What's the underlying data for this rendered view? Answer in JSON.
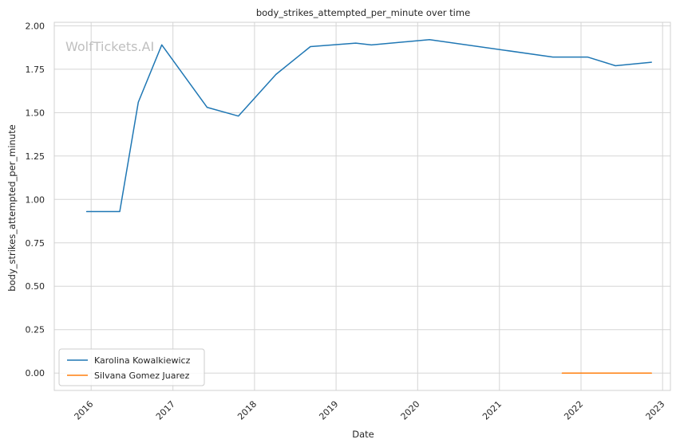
{
  "chart_data": {
    "type": "line",
    "title": "body_strikes_attempted_per_minute over time",
    "xlabel": "Date",
    "ylabel": "body_strikes_attempted_per_minute",
    "watermark": "WolfTickets.AI",
    "xlim": [
      "2015-07-20",
      "2023-02-05"
    ],
    "ylim": [
      -0.1,
      2.02
    ],
    "x_ticks": [
      "2016",
      "2017",
      "2018",
      "2019",
      "2020",
      "2021",
      "2022",
      "2023"
    ],
    "y_ticks": [
      "0.00",
      "0.25",
      "0.50",
      "0.75",
      "1.00",
      "1.25",
      "1.50",
      "1.75",
      "2.00"
    ],
    "grid": true,
    "legend_position": "lower-left",
    "series": [
      {
        "name": "Karolina Kowalkiewicz",
        "color": "#1f77b4",
        "points": [
          {
            "x": "2015-12-12",
            "y": 0.93
          },
          {
            "x": "2016-05-08",
            "y": 0.93
          },
          {
            "x": "2016-07-30",
            "y": 1.56
          },
          {
            "x": "2016-11-12",
            "y": 1.89
          },
          {
            "x": "2017-06-03",
            "y": 1.53
          },
          {
            "x": "2017-10-21",
            "y": 1.48
          },
          {
            "x": "2018-04-07",
            "y": 1.72
          },
          {
            "x": "2018-09-08",
            "y": 1.88
          },
          {
            "x": "2019-03-30",
            "y": 1.9
          },
          {
            "x": "2019-06-08",
            "y": 1.89
          },
          {
            "x": "2020-02-23",
            "y": 1.92
          },
          {
            "x": "2021-08-28",
            "y": 1.82
          },
          {
            "x": "2022-01-30",
            "y": 1.82
          },
          {
            "x": "2022-06-04",
            "y": 1.77
          },
          {
            "x": "2022-11-12",
            "y": 1.79
          }
        ]
      },
      {
        "name": "Silvana Gomez Juarez",
        "color": "#ff7f0e",
        "points": [
          {
            "x": "2021-10-09",
            "y": 0.0
          },
          {
            "x": "2022-11-12",
            "y": 0.0
          }
        ]
      }
    ]
  }
}
